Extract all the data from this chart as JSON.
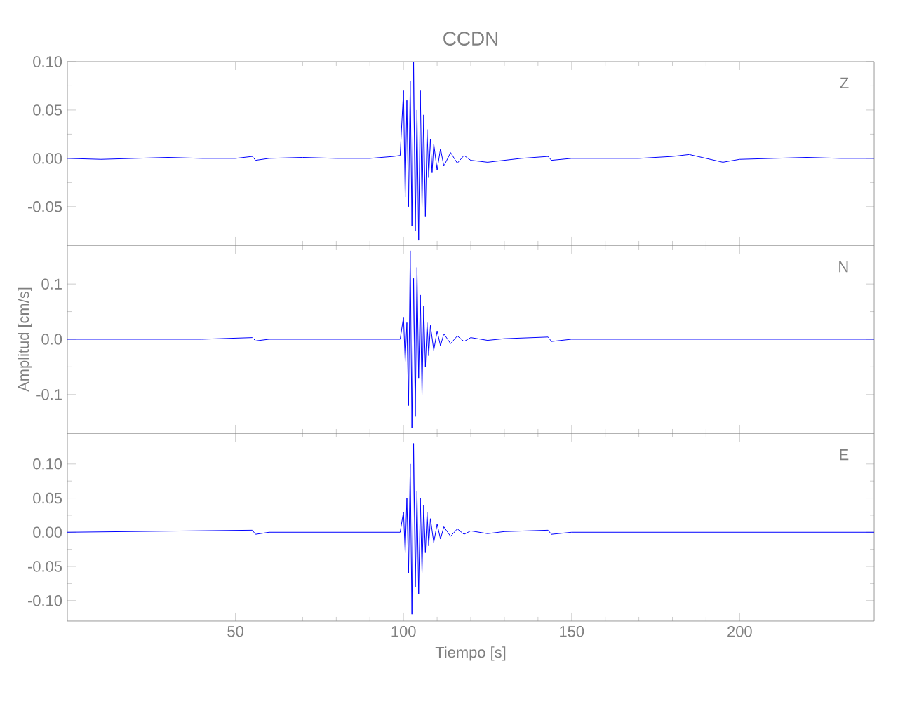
{
  "chart_data": [
    {
      "type": "line",
      "title": "CCDN",
      "annotations": [
        "Z"
      ],
      "tick_labels": "y",
      "xlim": [
        0,
        240
      ],
      "xticks": [
        50,
        100,
        150,
        200
      ],
      "ylim": [
        -0.09,
        0.1
      ],
      "yticks": [
        {
          "value": -0.05,
          "label": "-0.05"
        },
        {
          "value": 0,
          "label": "0.00"
        },
        {
          "value": 0.05,
          "label": "0.05"
        },
        {
          "value": 0.1,
          "label": "0.10"
        }
      ],
      "series": [
        {
          "color": "#0000ff",
          "x": [
            0,
            10,
            20,
            30,
            40,
            50,
            55,
            56,
            60,
            70,
            80,
            90,
            97,
            99,
            100,
            100.5,
            101,
            101.5,
            102,
            102.5,
            103,
            103.5,
            104,
            104.5,
            105,
            105.5,
            106,
            106.5,
            107,
            107.5,
            108,
            108.5,
            109,
            110,
            111,
            112,
            114,
            116,
            118,
            120,
            125,
            130,
            135,
            143,
            144,
            150,
            160,
            170,
            180,
            185,
            190,
            195,
            200,
            210,
            220,
            230,
            240
          ],
          "values": [
            0,
            -0.001,
            0,
            0.001,
            0,
            0,
            0.002,
            -0.002,
            0,
            0.001,
            0,
            0,
            0.002,
            0.003,
            0.07,
            -0.04,
            0.06,
            -0.05,
            0.08,
            -0.07,
            0.1,
            -0.075,
            0.05,
            -0.085,
            0.07,
            -0.05,
            0.045,
            -0.06,
            0.03,
            -0.02,
            0.02,
            -0.015,
            0.015,
            -0.012,
            0.01,
            -0.008,
            0.006,
            -0.005,
            0.003,
            -0.002,
            -0.004,
            -0.002,
            0,
            0.002,
            -0.002,
            0,
            0,
            0,
            0.002,
            0.004,
            0,
            -0.004,
            -0.001,
            0,
            0.001,
            0,
            0
          ]
        }
      ]
    },
    {
      "type": "line",
      "ylabel": "Amplitud  [cm/s]",
      "annotations": [
        "N"
      ],
      "tick_labels": "y",
      "xlim": [
        0,
        240
      ],
      "xticks": [
        50,
        100,
        150,
        200
      ],
      "ylim": [
        -0.17,
        0.17
      ],
      "yticks": [
        {
          "value": -0.1,
          "label": "-0.1"
        },
        {
          "value": 0,
          "label": "0.0"
        },
        {
          "value": 0.1,
          "label": "0.1"
        }
      ],
      "series": [
        {
          "color": "#0000ff",
          "x": [
            0,
            20,
            40,
            55,
            56,
            60,
            80,
            99,
            100,
            100.5,
            101,
            101.5,
            102,
            102.5,
            103,
            103.5,
            104,
            104.5,
            105,
            105.5,
            106,
            106.5,
            107,
            107.5,
            108,
            109,
            110,
            111,
            112,
            114,
            116,
            118,
            120,
            125,
            130,
            143,
            144,
            150,
            200,
            240
          ],
          "values": [
            0,
            0,
            0,
            0.003,
            -0.003,
            0,
            0,
            0,
            0.04,
            -0.04,
            0.03,
            -0.12,
            0.16,
            -0.16,
            0.11,
            -0.14,
            0.13,
            -0.07,
            0.08,
            -0.1,
            0.06,
            -0.05,
            0.03,
            -0.03,
            0.025,
            -0.02,
            0.015,
            -0.012,
            0.01,
            -0.008,
            0.006,
            -0.004,
            0.003,
            -0.002,
            0.001,
            0.004,
            -0.004,
            0,
            0,
            0
          ]
        }
      ]
    },
    {
      "type": "line",
      "xlabel": "Tiempo  [s]",
      "annotations": [
        "E"
      ],
      "xlim": [
        0,
        240
      ],
      "xticks": [
        50,
        100,
        150,
        200
      ],
      "ylim": [
        -0.13,
        0.145
      ],
      "yticks": [
        {
          "value": -0.1,
          "label": "-0.10"
        },
        {
          "value": -0.05,
          "label": "-0.05"
        },
        {
          "value": 0,
          "label": "0.00"
        },
        {
          "value": 0.05,
          "label": "0.05"
        },
        {
          "value": 0.1,
          "label": "0.10"
        }
      ],
      "series": [
        {
          "color": "#0000ff",
          "x": [
            0,
            55,
            56,
            60,
            99,
            100,
            100.5,
            101,
            101.5,
            102,
            102.5,
            103,
            103.5,
            104,
            104.5,
            105,
            105.5,
            106,
            106.5,
            107,
            107.5,
            108,
            109,
            110,
            111,
            112,
            114,
            116,
            118,
            120,
            125,
            130,
            143,
            144,
            150,
            200,
            240
          ],
          "values": [
            0,
            0.003,
            -0.003,
            0,
            0,
            0.03,
            -0.03,
            0.05,
            -0.06,
            0.1,
            -0.12,
            0.13,
            -0.08,
            0.06,
            -0.09,
            0.05,
            -0.06,
            0.04,
            -0.03,
            0.03,
            -0.02,
            0.02,
            -0.015,
            0.012,
            -0.01,
            0.008,
            -0.006,
            0.005,
            -0.003,
            0.002,
            -0.002,
            0.001,
            0.003,
            -0.003,
            0,
            0,
            0
          ]
        }
      ]
    }
  ]
}
